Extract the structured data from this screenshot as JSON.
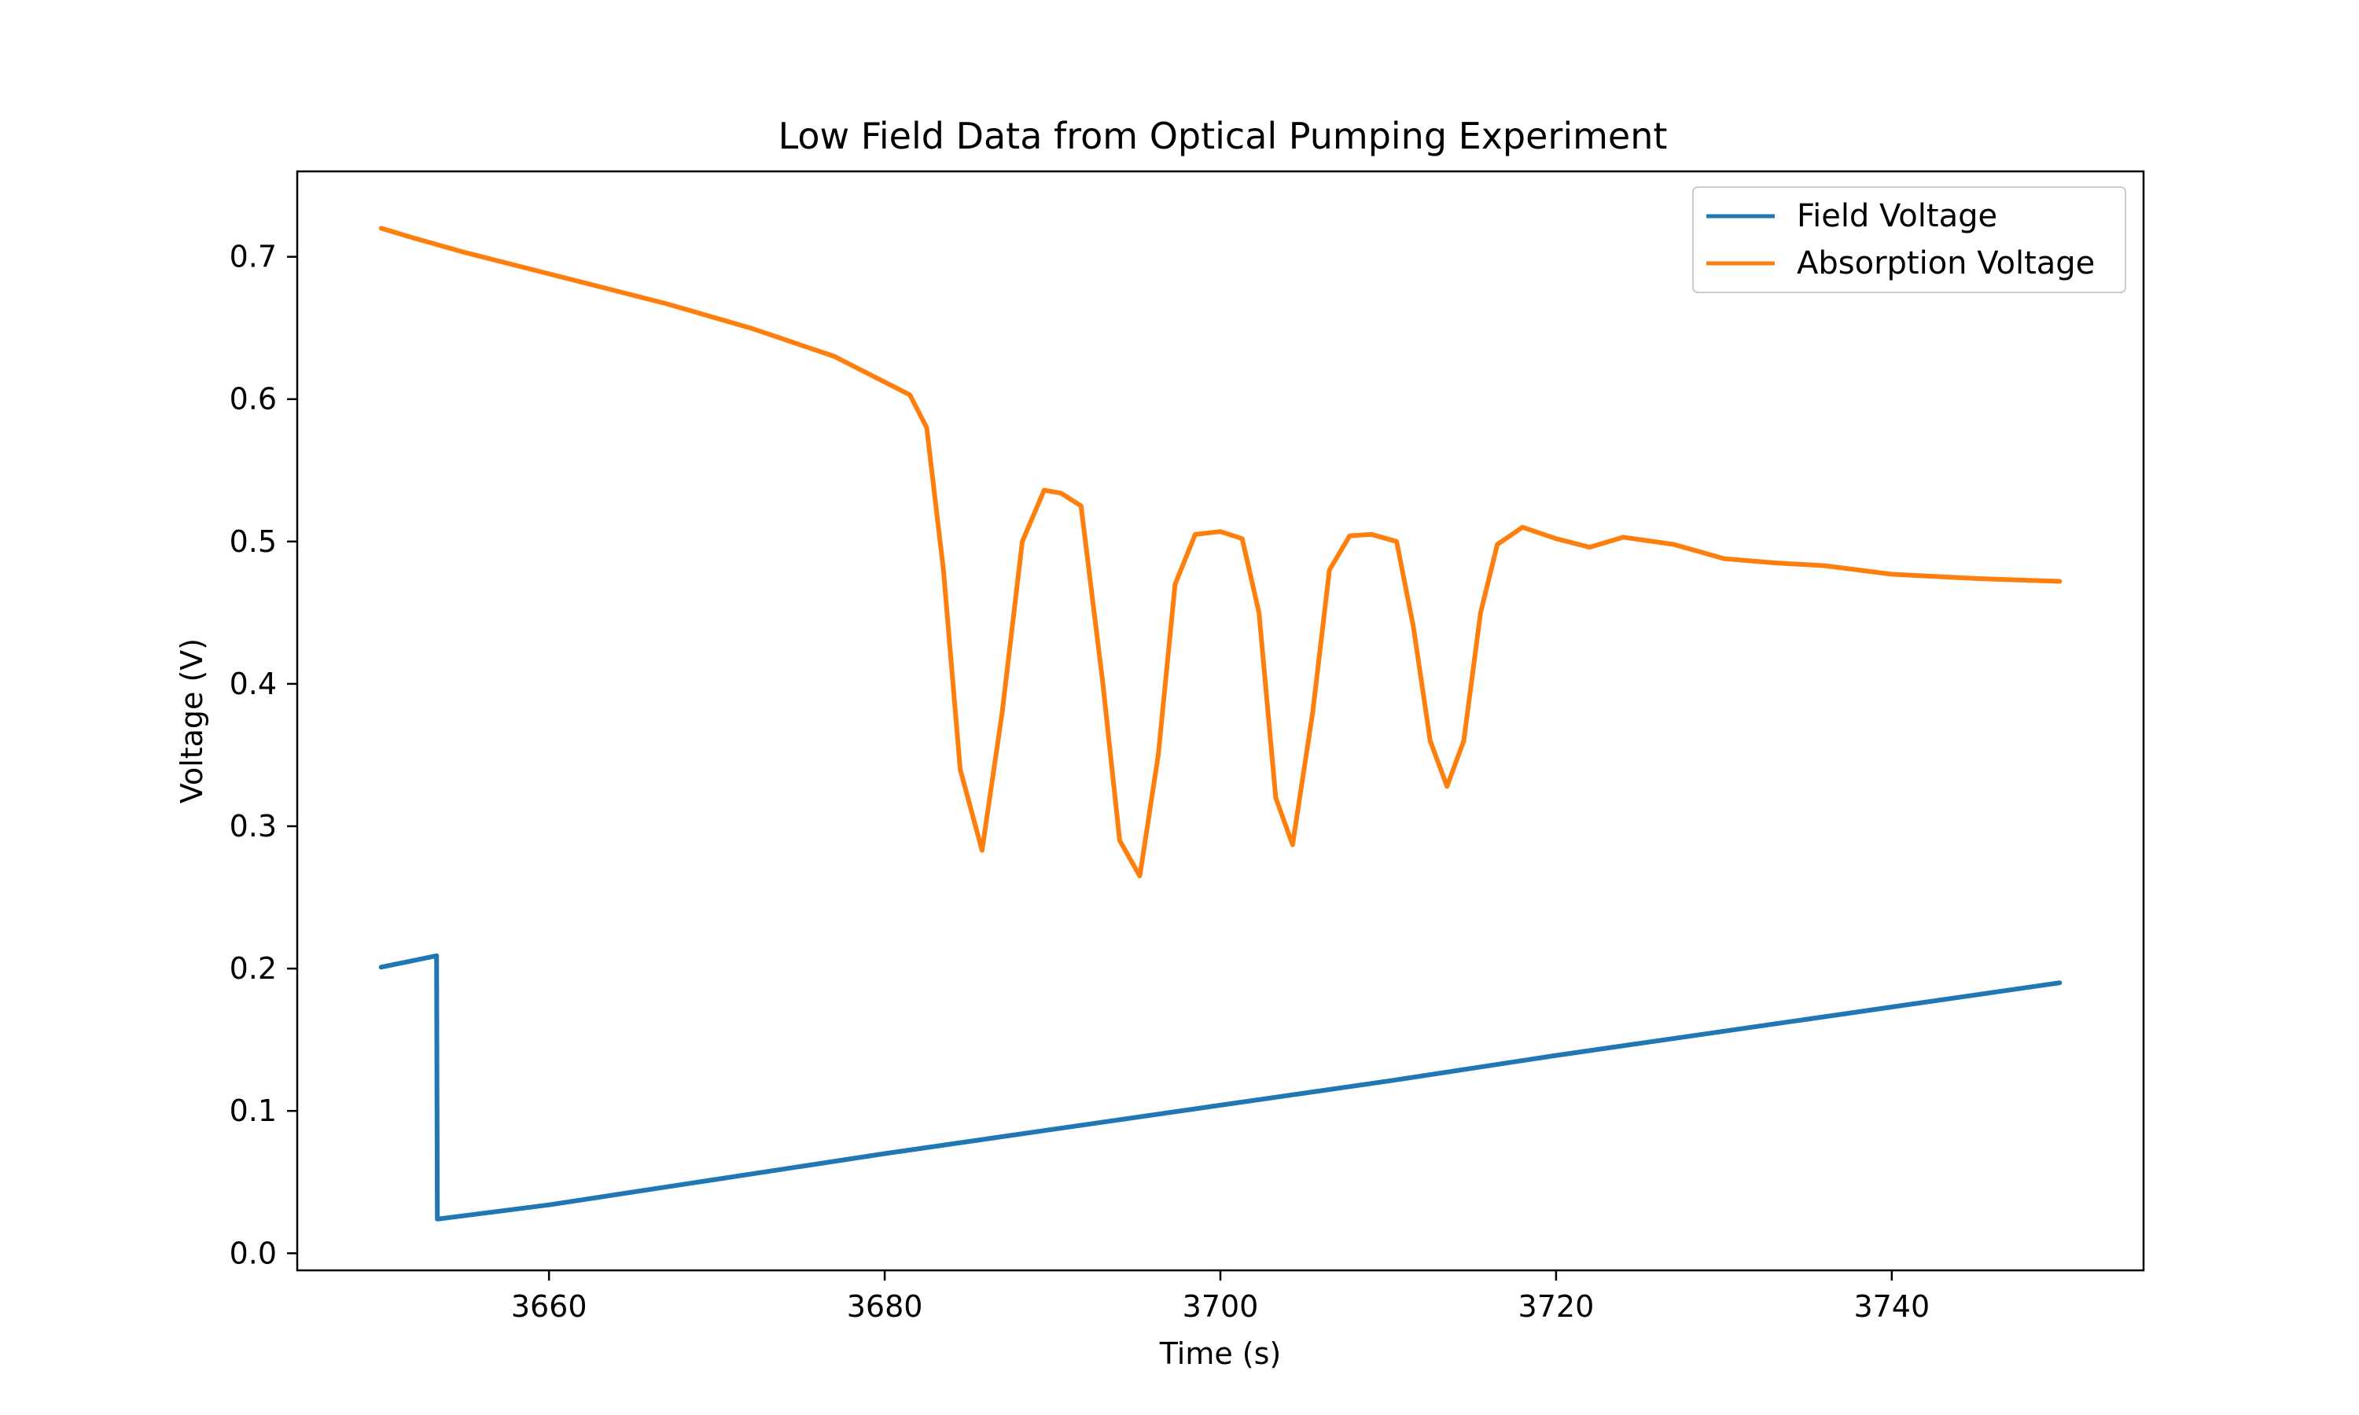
{
  "chart_data": {
    "type": "line",
    "title": "Low Field Data from Optical Pumping Experiment",
    "xlabel": "Time (s)",
    "ylabel": "Voltage (V)",
    "xlim": [
      3645,
      3755
    ],
    "ylim": [
      -0.012,
      0.76
    ],
    "xticks": [
      3660,
      3680,
      3700,
      3720,
      3740
    ],
    "yticks": [
      0.0,
      0.1,
      0.2,
      0.3,
      0.4,
      0.5,
      0.6,
      0.7
    ],
    "grid": false,
    "legend_position": "top-right",
    "series": [
      {
        "name": "Field Voltage",
        "color": "#1f77b4",
        "x": [
          3650.0,
          3653.3,
          3653.35,
          3660,
          3670,
          3680,
          3690,
          3700,
          3710,
          3720,
          3730,
          3740,
          3750.0
        ],
        "y": [
          0.201,
          0.209,
          0.024,
          0.034,
          0.052,
          0.07,
          0.087,
          0.104,
          0.121,
          0.139,
          0.156,
          0.173,
          0.19
        ]
      },
      {
        "name": "Absorption Voltage",
        "color": "#ff7f0e",
        "x": [
          3650,
          3652,
          3655,
          3658,
          3662,
          3667,
          3672,
          3677,
          3680,
          3681.5,
          3682.5,
          3683.5,
          3684.5,
          3685.8,
          3687,
          3688.2,
          3689.5,
          3690.5,
          3691.7,
          3693,
          3694,
          3695.2,
          3696.3,
          3697.3,
          3698.5,
          3700,
          3701.3,
          3702.3,
          3703.3,
          3704.3,
          3705.5,
          3706.5,
          3707.7,
          3709,
          3710.5,
          3711.5,
          3712.5,
          3713.5,
          3714.5,
          3715.5,
          3716.5,
          3718,
          3720,
          3722,
          3724,
          3727,
          3730,
          3733,
          3736,
          3740,
          3745,
          3750
        ],
        "y": [
          0.72,
          0.713,
          0.703,
          0.694,
          0.682,
          0.667,
          0.65,
          0.63,
          0.612,
          0.603,
          0.58,
          0.48,
          0.34,
          0.283,
          0.38,
          0.5,
          0.536,
          0.534,
          0.525,
          0.4,
          0.29,
          0.265,
          0.35,
          0.47,
          0.505,
          0.507,
          0.502,
          0.45,
          0.32,
          0.287,
          0.38,
          0.48,
          0.504,
          0.505,
          0.5,
          0.44,
          0.36,
          0.328,
          0.36,
          0.45,
          0.498,
          0.51,
          0.502,
          0.496,
          0.503,
          0.498,
          0.488,
          0.485,
          0.483,
          0.477,
          0.474,
          0.472
        ]
      }
    ]
  }
}
